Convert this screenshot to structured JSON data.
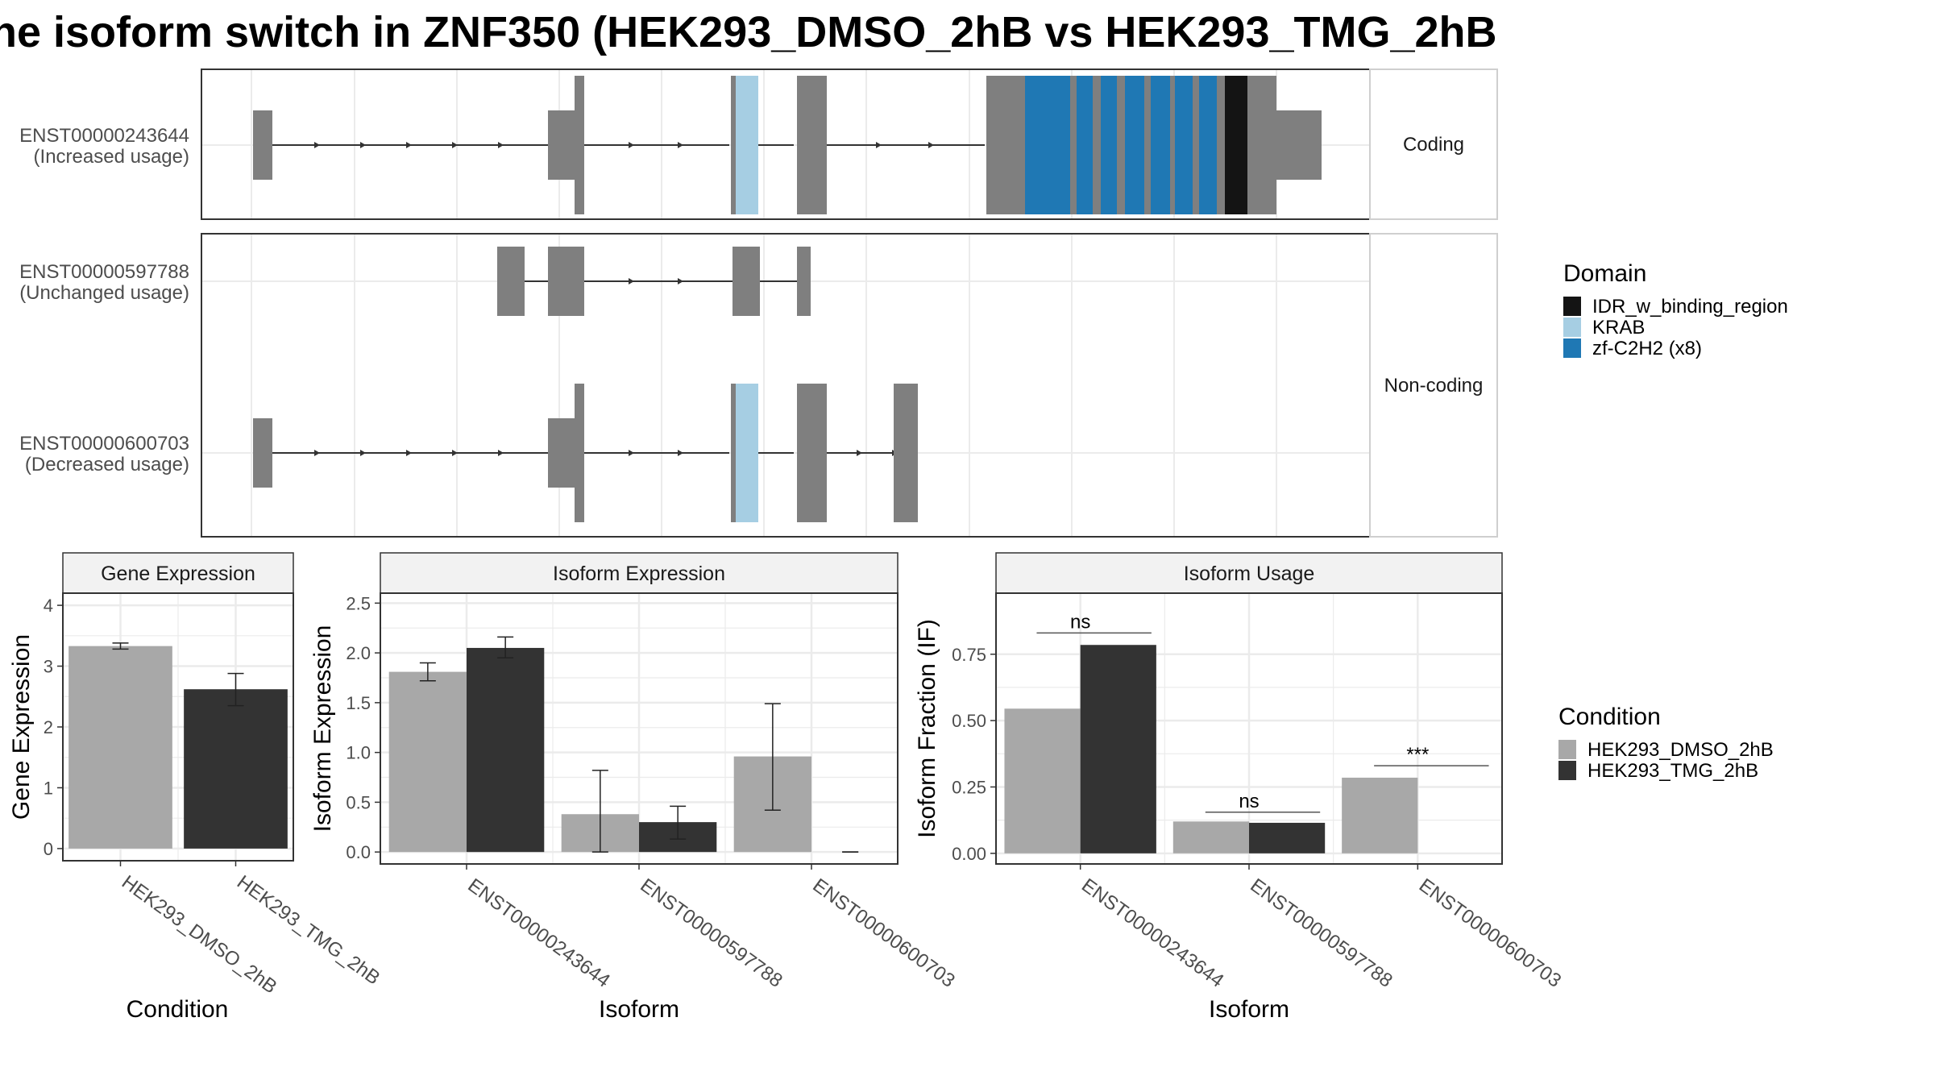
{
  "title": "he isoform switch in ZNF350 (HEK293_DMSO_2hB vs HEK293_TMG_2hB",
  "colors": {
    "exon": "#7f7f7f",
    "intron": "#333333",
    "dmso": "#a8a8a8",
    "tmg": "#333333",
    "grid": "#ebebeb",
    "strip_bg": "#f2f2f2",
    "panel_border": "#333333"
  },
  "structure": {
    "facets": [
      "Coding",
      "Non-coding"
    ],
    "transcripts": [
      {
        "id": "ENST00000243644",
        "usage": "(Increased usage)",
        "facet": "Coding"
      },
      {
        "id": "ENST00000597788",
        "usage": "(Unchanged usage)",
        "facet": "Non-coding"
      },
      {
        "id": "ENST00000600703",
        "usage": "(Decreased usage)",
        "facet": "Non-coding"
      }
    ],
    "legend_title": "Domain",
    "domains": [
      {
        "name": "IDR_w_binding_region",
        "color": "#141414"
      },
      {
        "name": "KRAB",
        "color": "#a6cee3"
      },
      {
        "name": "zf-C2H2 (x8)",
        "color": "#1f78b4"
      }
    ]
  },
  "condition_legend": {
    "title": "Condition",
    "items": [
      {
        "name": "HEK293_DMSO_2hB",
        "color": "#a8a8a8"
      },
      {
        "name": "HEK293_TMG_2hB",
        "color": "#333333"
      }
    ]
  },
  "chart_data": [
    {
      "type": "bar",
      "title": "Gene Expression",
      "xlabel": "Condition",
      "ylabel": "Gene Expression",
      "categories": [
        "HEK293_DMSO_2hB",
        "HEK293_TMG_2hB"
      ],
      "values": [
        3.33,
        2.62
      ],
      "errors": [
        [
          3.28,
          3.38
        ],
        [
          2.35,
          2.88
        ]
      ],
      "yticks": [
        "0",
        "1",
        "2",
        "3",
        "4"
      ],
      "ylim": [
        -0.2,
        4.2
      ],
      "grid": true
    },
    {
      "type": "bar",
      "title": "Isoform Expression",
      "xlabel": "Isoform",
      "ylabel": "Isoform Expression",
      "categories": [
        "ENST00000243644",
        "ENST00000597788",
        "ENST00000600703"
      ],
      "series": [
        {
          "name": "HEK293_DMSO_2hB",
          "values": [
            1.81,
            0.38,
            0.96
          ],
          "errors": [
            [
              1.72,
              1.9
            ],
            [
              0.0,
              0.82
            ],
            [
              0.42,
              1.49
            ]
          ]
        },
        {
          "name": "HEK293_TMG_2hB",
          "values": [
            2.05,
            0.3,
            0.0
          ],
          "errors": [
            [
              1.95,
              2.16
            ],
            [
              0.13,
              0.46
            ],
            [
              0.0,
              0.0
            ]
          ]
        }
      ],
      "yticks": [
        "0.0",
        "0.5",
        "1.0",
        "1.5",
        "2.0",
        "2.5"
      ],
      "ylim": [
        -0.12,
        2.6
      ],
      "grid": true
    },
    {
      "type": "bar",
      "title": "Isoform Usage",
      "xlabel": "Isoform",
      "ylabel": "Isoform Fraction (IF)",
      "categories": [
        "ENST00000243644",
        "ENST00000597788",
        "ENST00000600703"
      ],
      "series": [
        {
          "name": "HEK293_DMSO_2hB",
          "values": [
            0.545,
            0.12,
            0.285
          ]
        },
        {
          "name": "HEK293_TMG_2hB",
          "values": [
            0.785,
            0.115,
            0.0
          ]
        }
      ],
      "significance": [
        "ns",
        "ns",
        "***"
      ],
      "significance_level": [
        0.83,
        0.155,
        0.33
      ],
      "yticks": [
        "0.00",
        "0.25",
        "0.50",
        "0.75"
      ],
      "ylim": [
        -0.04,
        0.98
      ],
      "grid": true
    }
  ]
}
